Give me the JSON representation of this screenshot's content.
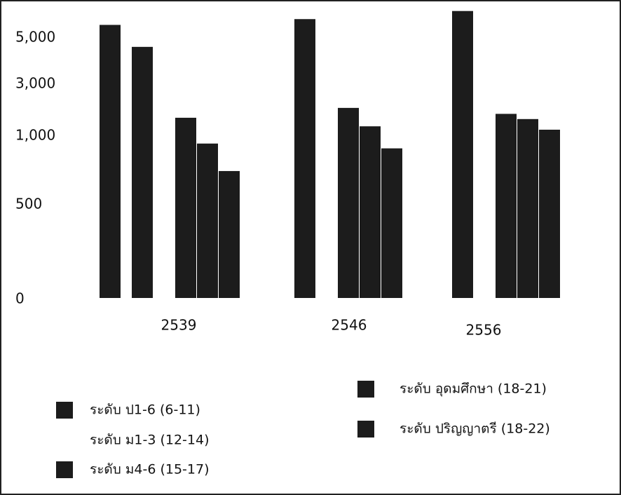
{
  "chart_data": {
    "type": "bar",
    "categories": [
      "2539",
      "2546",
      "2556"
    ],
    "ylim": [
      0,
      6200
    ],
    "yticks": [
      0,
      500,
      {
        "value": 1000,
        "label": "1,000"
      },
      {
        "value": 3000,
        "label": "3,000"
      },
      {
        "value": 5000,
        "label": "5,000"
      }
    ],
    "series": [
      {
        "name": "ระดับ ป1-6  (6-11)",
        "color": "#1c1c1c",
        "values": [
          5500,
          5750,
          6100
        ]
      },
      {
        "name": "ระดับ ม1-3  (12-14)",
        "color": "#1c1c1c",
        "values": [
          4550,
          null,
          null
        ]
      },
      {
        "name": "ระดับ ม4-6  (15-17)",
        "color": "#1c1c1c",
        "values": [
          1650,
          2030,
          1800
        ]
      },
      {
        "name": "ระดับ อุดมศึกษา  (18-21)",
        "color": "#1c1c1c",
        "values": [
          935,
          1320,
          1600
        ]
      },
      {
        "name": "ระดับ ปริญญาตรี  (18-22)",
        "color": "#1c1c1c",
        "values": [
          735,
          900,
          1190
        ]
      }
    ]
  }
}
